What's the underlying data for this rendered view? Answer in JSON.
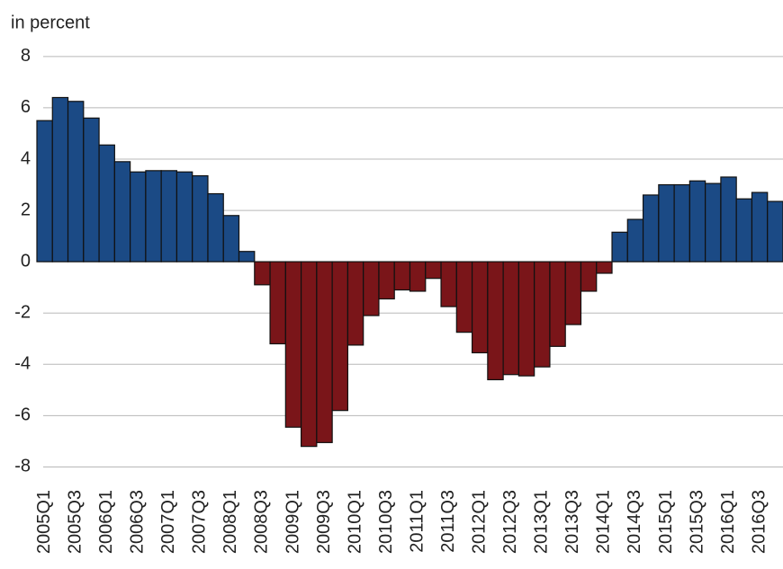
{
  "chart_data": {
    "type": "bar",
    "y_label": "in percent",
    "categories": [
      "2005Q1",
      null,
      "2005Q3",
      null,
      "2006Q1",
      null,
      "2006Q3",
      null,
      "2007Q1",
      null,
      "2007Q3",
      null,
      "2008Q1",
      null,
      "2008Q3",
      null,
      "2009Q1",
      null,
      "2009Q3",
      null,
      "2010Q1",
      null,
      "2010Q3",
      null,
      "2011Q1",
      null,
      "2011Q3",
      null,
      "2012Q1",
      null,
      "2012Q3",
      null,
      "2013Q1",
      null,
      "2013Q3",
      null,
      "2014Q1",
      null,
      "2014Q3",
      null,
      "2015Q1",
      null,
      "2015Q3",
      null,
      "2016Q1",
      null,
      "2016Q3",
      null
    ],
    "values": [
      5.5,
      6.4,
      6.25,
      5.6,
      4.55,
      3.9,
      3.5,
      3.55,
      3.55,
      3.5,
      3.35,
      2.65,
      1.8,
      0.4,
      -0.9,
      -3.2,
      -6.45,
      -7.2,
      -7.05,
      -5.8,
      -3.25,
      -2.1,
      -1.45,
      -1.1,
      -1.15,
      -0.65,
      -1.75,
      -2.75,
      -3.55,
      -4.6,
      -4.4,
      -4.45,
      -4.1,
      -3.3,
      -2.45,
      -1.15,
      -0.45,
      1.15,
      1.65,
      2.6,
      3.0,
      3.0,
      3.15,
      3.05,
      3.3,
      2.45,
      2.7,
      2.35
    ],
    "positive_color": "#1b4a85",
    "negative_color": "#7a1519",
    "ylim": [
      -9,
      8.8
    ],
    "yticks": [
      -8,
      -6,
      -4,
      -2,
      0,
      2,
      4,
      6,
      8
    ],
    "grid": true
  }
}
